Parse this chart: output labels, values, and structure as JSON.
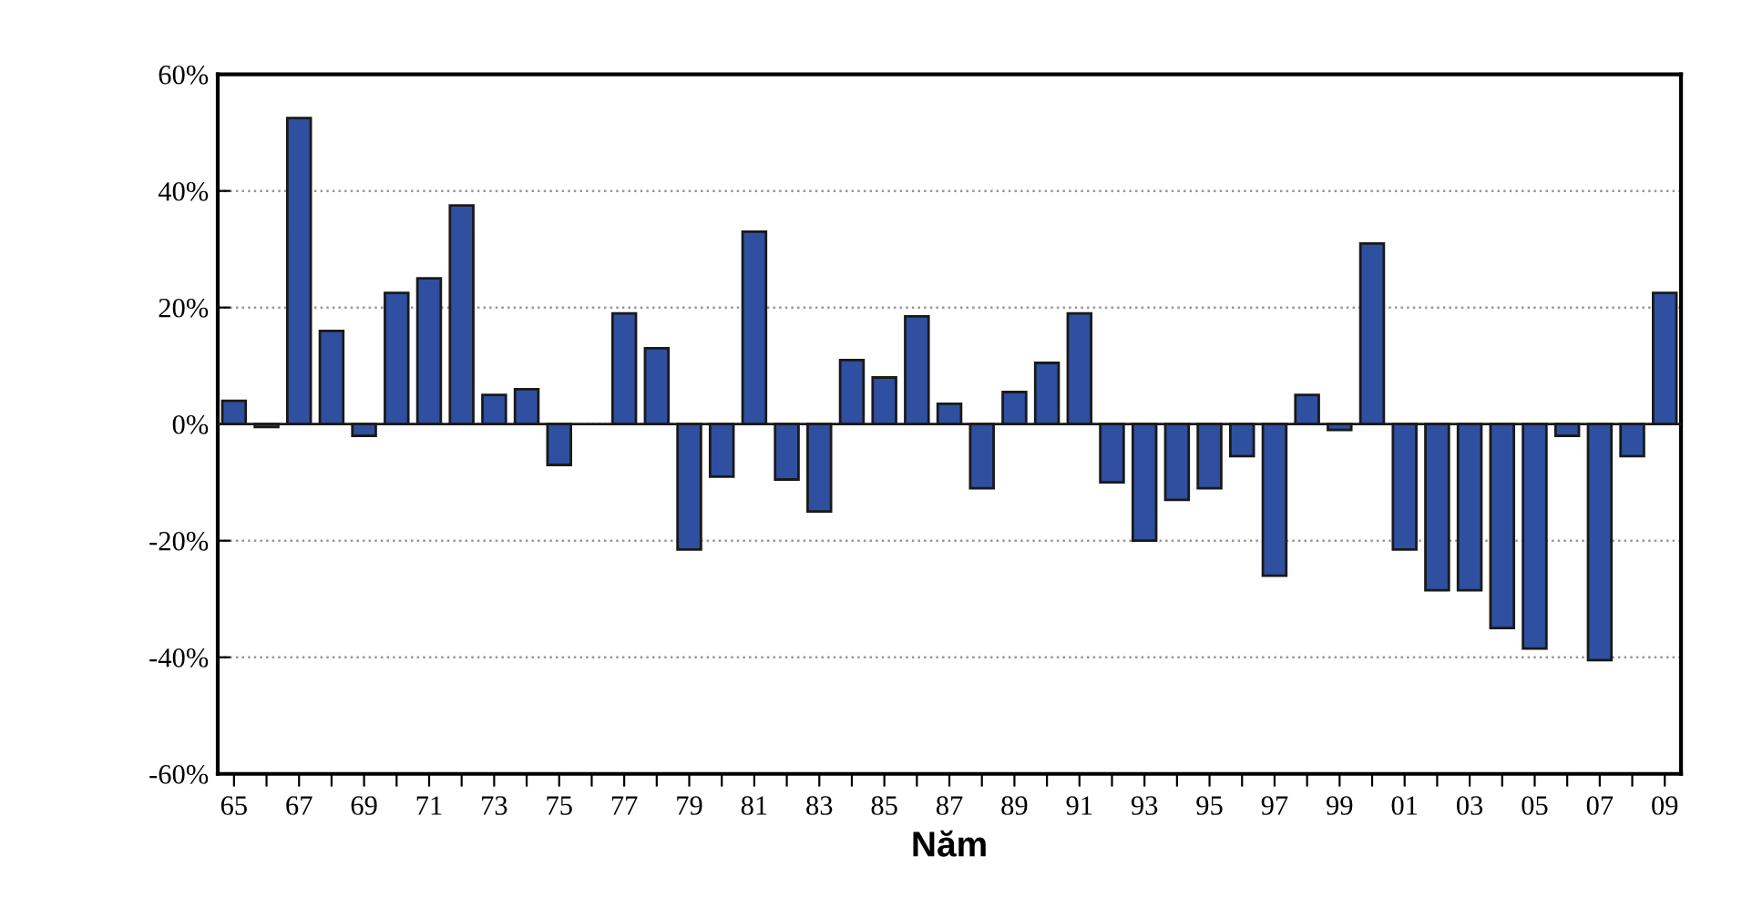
{
  "chart_data": {
    "type": "bar",
    "xlabel": "Năm",
    "categories": [
      "65",
      null,
      "67",
      null,
      "69",
      null,
      "71",
      null,
      "73",
      null,
      "75",
      null,
      "77",
      null,
      "79",
      null,
      "81",
      null,
      "83",
      null,
      "85",
      null,
      "87",
      null,
      "89",
      null,
      "91",
      null,
      "93",
      null,
      "95",
      null,
      "97",
      null,
      "99",
      null,
      "01",
      null,
      "03",
      null,
      "05",
      null,
      "07",
      null,
      "09"
    ],
    "values": [
      4,
      -0.5,
      52.5,
      16,
      -2,
      22.5,
      25,
      37.5,
      5,
      6,
      -7,
      null,
      19,
      13,
      -21.5,
      -9,
      33,
      -9.5,
      -15,
      11,
      8,
      18.5,
      3.5,
      -11,
      5.5,
      10.5,
      19,
      -10,
      -20,
      -13,
      -11,
      -5.5,
      -26,
      5,
      -1,
      31,
      -21.5,
      -28.5,
      -28.5,
      -35,
      -38.5,
      -2,
      -40.5,
      -5.5,
      22.5
    ],
    "color": "#2f4fa0",
    "ylim": [
      -60,
      60
    ],
    "yticks": [
      {
        "value": -60,
        "label": "-60%"
      },
      {
        "value": -40,
        "label": "-40%"
      },
      {
        "value": -20,
        "label": "-20%"
      },
      {
        "value": 0,
        "label": "0%"
      },
      {
        "value": 20,
        "label": "20%"
      },
      {
        "value": 40,
        "label": "40%"
      },
      {
        "value": 60,
        "label": "60%"
      }
    ],
    "grid": "y",
    "legend": false
  }
}
